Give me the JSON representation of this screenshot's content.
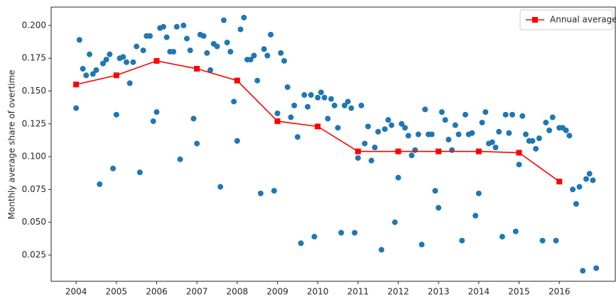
{
  "chart_data": {
    "type": "scatter",
    "ylabel": "Monthly average share of overtime",
    "xlim": [
      2003.38,
      2017.39
    ],
    "ylim": [
      0.005,
      0.214
    ],
    "xticks": [
      2004,
      2005,
      2006,
      2007,
      2008,
      2009,
      2010,
      2011,
      2012,
      2013,
      2014,
      2015,
      2016
    ],
    "yticks": [
      0.025,
      {
        "value": 0.05,
        "label": "0.050"
      },
      0.075,
      {
        "value": 0.1,
        "label": "0.100"
      },
      0.125,
      {
        "value": 0.15,
        "label": "0.150"
      },
      0.175,
      {
        "value": 0.2,
        "label": "0.200"
      }
    ],
    "legend": "upper right",
    "series": [
      {
        "type": "scatter",
        "color": "#1f77b4",
        "x": [
          2004,
          2004.083,
          2004.167,
          2004.25,
          2004.333,
          2004.417,
          2004.5,
          2004.583,
          2004.667,
          2004.75,
          2004.833,
          2004.917,
          2005,
          2005.083,
          2005.167,
          2005.25,
          2005.333,
          2005.417,
          2005.5,
          2005.583,
          2005.667,
          2005.75,
          2005.833,
          2005.917,
          2006,
          2006.083,
          2006.167,
          2006.25,
          2006.333,
          2006.417,
          2006.5,
          2006.583,
          2006.667,
          2006.75,
          2006.833,
          2006.917,
          2007,
          2007.083,
          2007.167,
          2007.25,
          2007.333,
          2007.417,
          2007.5,
          2007.583,
          2007.667,
          2007.75,
          2007.833,
          2007.917,
          2008,
          2008.083,
          2008.167,
          2008.25,
          2008.333,
          2008.417,
          2008.5,
          2008.583,
          2008.667,
          2008.75,
          2008.833,
          2008.917,
          2009,
          2009.083,
          2009.167,
          2009.25,
          2009.333,
          2009.417,
          2009.5,
          2009.583,
          2009.667,
          2009.75,
          2009.833,
          2009.917,
          2010,
          2010.083,
          2010.167,
          2010.25,
          2010.333,
          2010.417,
          2010.5,
          2010.583,
          2010.667,
          2010.75,
          2010.833,
          2010.917,
          2011,
          2011.083,
          2011.167,
          2011.25,
          2011.333,
          2011.417,
          2011.5,
          2011.583,
          2011.667,
          2011.75,
          2011.833,
          2011.917,
          2012,
          2012.083,
          2012.167,
          2012.25,
          2012.333,
          2012.417,
          2012.5,
          2012.583,
          2012.667,
          2012.75,
          2012.833,
          2012.917,
          2013,
          2013.083,
          2013.167,
          2013.25,
          2013.333,
          2013.417,
          2013.5,
          2013.583,
          2013.667,
          2013.75,
          2013.833,
          2013.917,
          2014,
          2014.083,
          2014.167,
          2014.25,
          2014.333,
          2014.417,
          2014.5,
          2014.583,
          2014.667,
          2014.75,
          2014.833,
          2014.917,
          2015,
          2015.083,
          2015.167,
          2015.25,
          2015.333,
          2015.417,
          2015.5,
          2015.583,
          2015.667,
          2015.75,
          2015.833,
          2015.917,
          2016,
          2016.083,
          2016.167,
          2016.25,
          2016.333,
          2016.417,
          2016.5,
          2016.583,
          2016.667,
          2016.75,
          2016.833,
          2016.917
        ],
        "values": [
          0.137,
          0.189,
          0.167,
          0.162,
          0.178,
          0.163,
          0.166,
          0.079,
          0.171,
          0.174,
          0.178,
          0.091,
          0.132,
          0.175,
          0.176,
          0.172,
          0.156,
          0.172,
          0.184,
          0.088,
          0.181,
          0.192,
          0.192,
          0.127,
          0.134,
          0.198,
          0.199,
          0.191,
          0.18,
          0.18,
          0.199,
          0.098,
          0.2,
          0.19,
          0.181,
          0.129,
          0.11,
          0.193,
          0.192,
          0.179,
          0.166,
          0.186,
          0.184,
          0.077,
          0.204,
          0.187,
          0.18,
          0.142,
          0.112,
          0.197,
          0.206,
          0.174,
          0.174,
          0.177,
          0.158,
          0.072,
          0.182,
          0.177,
          0.193,
          0.074,
          0.133,
          0.179,
          0.173,
          0.153,
          0.13,
          0.139,
          0.115,
          0.034,
          0.147,
          0.138,
          0.147,
          0.039,
          0.145,
          0.149,
          0.145,
          0.129,
          0.144,
          0.139,
          0.122,
          0.042,
          0.139,
          0.142,
          0.137,
          0.042,
          0.099,
          0.139,
          0.11,
          0.123,
          0.097,
          0.107,
          0.119,
          0.029,
          0.121,
          0.128,
          0.124,
          0.05,
          0.084,
          0.125,
          0.122,
          0.116,
          0.101,
          0.105,
          0.117,
          0.033,
          0.136,
          0.117,
          0.117,
          0.074,
          0.061,
          0.134,
          0.128,
          0.113,
          0.105,
          0.124,
          0.117,
          0.036,
          0.132,
          0.117,
          0.118,
          0.055,
          0.072,
          0.126,
          0.134,
          0.11,
          0.111,
          0.107,
          0.119,
          0.039,
          0.132,
          0.118,
          0.132,
          0.043,
          0.094,
          0.131,
          0.117,
          0.112,
          0.112,
          0.106,
          0.114,
          0.036,
          0.126,
          0.12,
          0.13,
          0.036,
          0.122,
          0.122,
          0.12,
          0.116,
          0.075,
          0.064,
          0.077,
          0.013,
          0.083,
          0.087,
          0.082,
          0.015
        ]
      },
      {
        "type": "line",
        "name": "Annual average",
        "color": "#ff0000",
        "marker": "square",
        "x": [
          2004,
          2005,
          2006,
          2007,
          2008,
          2009,
          2010,
          2011,
          2012,
          2013,
          2014,
          2015,
          2016
        ],
        "values": [
          0.155,
          0.162,
          0.173,
          0.167,
          0.158,
          0.127,
          0.123,
          0.104,
          0.104,
          0.104,
          0.104,
          0.103,
          0.081
        ]
      }
    ]
  }
}
